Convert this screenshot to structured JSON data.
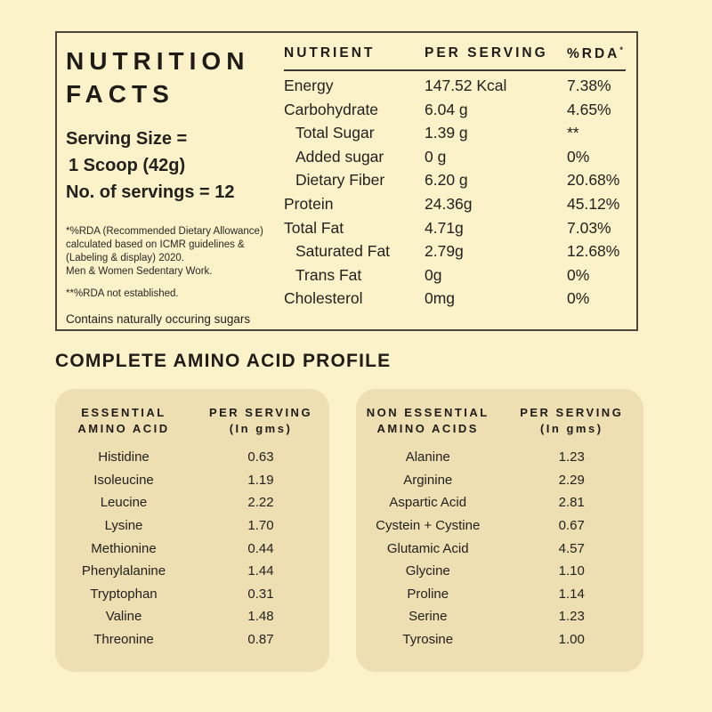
{
  "colors": {
    "background": "#FBF2CA",
    "card": "#EEDFB3",
    "text": "#292621",
    "border": "#4E4639"
  },
  "nutrition_facts": {
    "title_line1": "NUTRITION",
    "title_line2": "FACTS",
    "serving_line1": "Serving Size =",
    "serving_line2": "1 Scoop (42g)",
    "serving_line3": "No. of servings = 12",
    "footnote_rda": "*%RDA (Recommended Dietary Allowance) calculated based on ICMR guidelines & (Labeling & display) 2020.",
    "footnote_work": "Men & Women Sedentary Work.",
    "footnote_not_established": "**%RDA not established.",
    "footnote_sugars": "Contains naturally occuring sugars",
    "table": {
      "col_nutrient": "NUTRIENT",
      "col_per_serving": "PER SERVING",
      "col_rda": "%RDA",
      "col_rda_sup": "*",
      "rows": [
        {
          "name": "Energy",
          "value": "147.52 Kcal",
          "rda": "7.38%"
        },
        {
          "name": "Carbohydrate",
          "value": "6.04 g",
          "rda": "4.65%"
        },
        {
          "name": "Total Sugar",
          "value": "1.39 g",
          "rda": "**"
        },
        {
          "name": "Added sugar",
          "value": "0 g",
          "rda": "0%"
        },
        {
          "name": "Dietary Fiber",
          "value": "6.20 g",
          "rda": "20.68%"
        },
        {
          "name": "Protein",
          "value": "24.36g",
          "rda": "45.12%"
        },
        {
          "name": "Total Fat",
          "value": "4.71g",
          "rda": "7.03%"
        },
        {
          "name": "Saturated Fat",
          "value": "2.79g",
          "rda": "12.68%"
        },
        {
          "name": "Trans Fat",
          "value": "0g",
          "rda": "0%"
        },
        {
          "name": "Cholesterol",
          "value": "0mg",
          "rda": "0%"
        }
      ]
    }
  },
  "amino_profile": {
    "title": "COMPLETE AMINO ACID PROFILE",
    "essential": {
      "header_name_line1": "ESSENTIAL",
      "header_name_line2": "AMINO ACID",
      "header_value_line1": "PER SERVING",
      "header_value_line2": "(In gms)",
      "rows": [
        {
          "name": "Histidine",
          "value": "0.63"
        },
        {
          "name": "Isoleucine",
          "value": "1.19"
        },
        {
          "name": "Leucine",
          "value": "2.22"
        },
        {
          "name": "Lysine",
          "value": "1.70"
        },
        {
          "name": "Methionine",
          "value": "0.44"
        },
        {
          "name": "Phenylalanine",
          "value": "1.44"
        },
        {
          "name": "Tryptophan",
          "value": "0.31"
        },
        {
          "name": "Valine",
          "value": "1.48"
        },
        {
          "name": "Threonine",
          "value": "0.87"
        }
      ]
    },
    "non_essential": {
      "header_name_line1": "NON ESSENTIAL",
      "header_name_line2": "AMINO ACIDS",
      "header_value_line1": "PER SERVING",
      "header_value_line2": "(In gms)",
      "rows": [
        {
          "name": "Alanine",
          "value": "1.23"
        },
        {
          "name": "Arginine",
          "value": "2.29"
        },
        {
          "name": "Aspartic Acid",
          "value": "2.81"
        },
        {
          "name": "Cystein + Cystine",
          "value": "0.67"
        },
        {
          "name": "Glutamic Acid",
          "value": "4.57"
        },
        {
          "name": "Glycine",
          "value": "1.10"
        },
        {
          "name": "Proline",
          "value": "1.14"
        },
        {
          "name": "Serine",
          "value": "1.23"
        },
        {
          "name": "Tyrosine",
          "value": "1.00"
        }
      ]
    }
  }
}
